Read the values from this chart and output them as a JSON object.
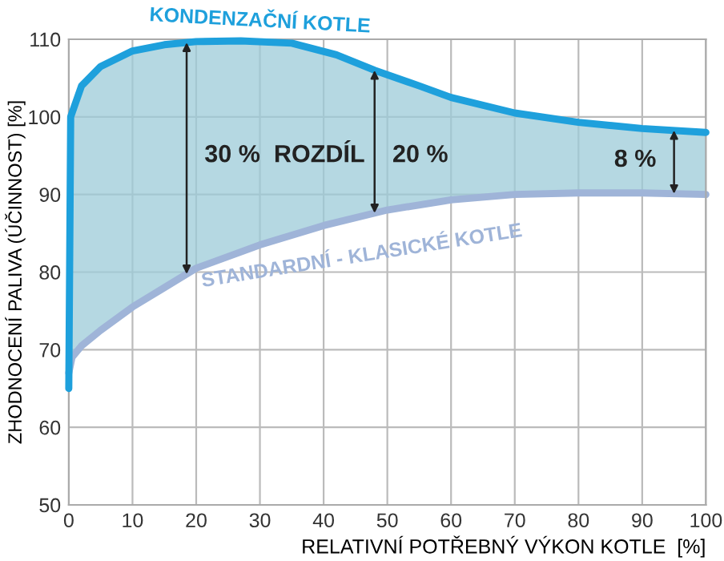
{
  "chart_data": {
    "type": "line",
    "xlabel": "RELATIVNÍ POTŘEBNÝ VÝKON KOTLE  [%]",
    "ylabel": "ZHODNOCENÍ PALIVA (ÚČINNOST) [%]",
    "xlim": [
      0,
      100
    ],
    "ylim": [
      50,
      110
    ],
    "xticks": [
      0,
      10,
      20,
      30,
      40,
      50,
      60,
      70,
      80,
      90,
      100
    ],
    "yticks": [
      50,
      60,
      70,
      80,
      90,
      100,
      110
    ],
    "grid": true,
    "marker": "none",
    "line_style": "solid",
    "series": [
      {
        "name": "KONDENZAČNÍ KOTLE",
        "color": "#1ea0dc",
        "x": [
          0,
          0.3,
          2,
          5,
          10,
          15,
          20,
          27,
          35,
          42,
          48,
          55,
          60,
          70,
          80,
          90,
          100
        ],
        "values": [
          65,
          100,
          104,
          106.5,
          108.5,
          109.3,
          109.7,
          109.8,
          109.5,
          108,
          106,
          104,
          102.5,
          100.5,
          99.3,
          98.5,
          98
        ]
      },
      {
        "name": "STANDARDNÍ - KLASICKÉ KOTLE",
        "color": "#9fb4d8",
        "x": [
          0,
          0.5,
          2,
          5,
          10,
          15,
          20,
          30,
          40,
          50,
          60,
          70,
          80,
          90,
          100
        ],
        "values": [
          67,
          69,
          70.5,
          72.5,
          75.5,
          78,
          80.5,
          83.5,
          86,
          88,
          89.3,
          90,
          90.2,
          90.2,
          90
        ]
      }
    ],
    "annotations": [
      "30 %  ROZDÍL",
      "20 %",
      "8 %"
    ]
  }
}
